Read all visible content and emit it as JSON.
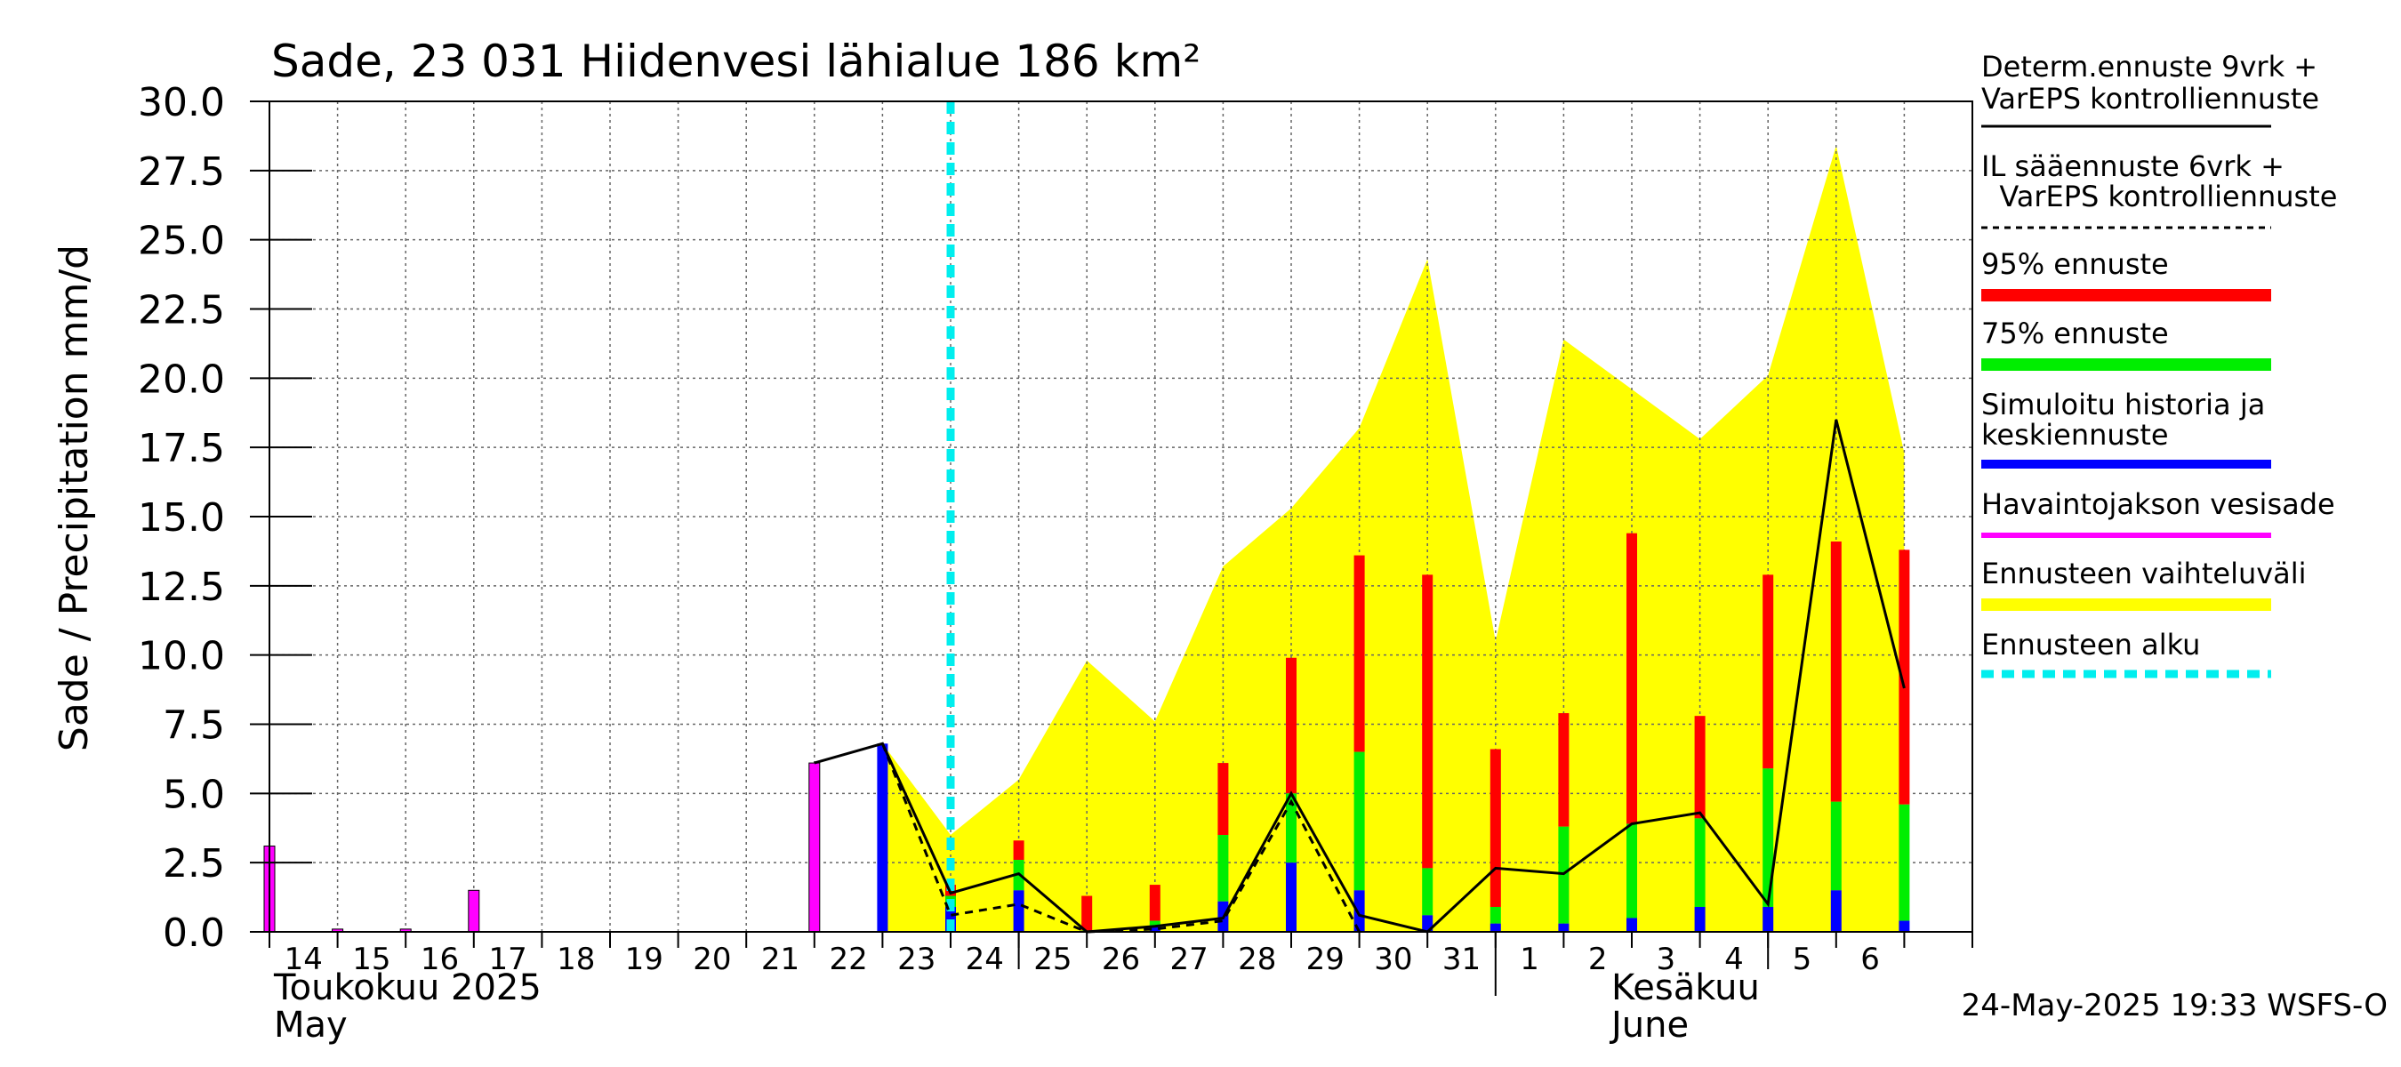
{
  "colors": {
    "p95": "#ff0000",
    "p75": "#00ee00",
    "median": "#0000ff",
    "observed": "#ff00ff",
    "range": "#ffff00",
    "forecast_start": "#00eeee",
    "grid": "#666666"
  },
  "chart_data": {
    "type": "bar",
    "title": "Sade, 23 031 Hiidenvesi lähialue 186 km²",
    "ylabel": "Sade / Precipitation   mm/d",
    "ylim": [
      0,
      30
    ],
    "yticks": [
      "0.0",
      "2.5",
      "5.0",
      "7.5",
      "10.0",
      "12.5",
      "15.0",
      "17.5",
      "20.0",
      "22.5",
      "25.0",
      "27.5",
      "30.0"
    ],
    "x_range": [
      "2025-05-14",
      "2025-06-07"
    ],
    "x_ticks": [
      {
        "day": 14,
        "label": "14"
      },
      {
        "day": 15,
        "label": "15"
      },
      {
        "day": 16,
        "label": "16"
      },
      {
        "day": 17,
        "label": "17"
      },
      {
        "day": 18,
        "label": "18"
      },
      {
        "day": 19,
        "label": "19"
      },
      {
        "day": 20,
        "label": "20"
      },
      {
        "day": 21,
        "label": "21"
      },
      {
        "day": 22,
        "label": "22"
      },
      {
        "day": 23,
        "label": "23"
      },
      {
        "day": 24,
        "label": "24"
      },
      {
        "day": 25,
        "label": "25"
      },
      {
        "day": 26,
        "label": "26"
      },
      {
        "day": 27,
        "label": "27"
      },
      {
        "day": 28,
        "label": "28"
      },
      {
        "day": 29,
        "label": "29"
      },
      {
        "day": 30,
        "label": "30"
      },
      {
        "day": 31,
        "label": "31"
      },
      {
        "day": 32,
        "label": "1"
      },
      {
        "day": 33,
        "label": "2"
      },
      {
        "day": 34,
        "label": "3"
      },
      {
        "day": 35,
        "label": "4"
      },
      {
        "day": 36,
        "label": "5"
      },
      {
        "day": 37,
        "label": "6"
      }
    ],
    "month_labels": {
      "may_fi": "Toukokuu  2025",
      "may_en": "May",
      "june_fi": "Kesäkuu",
      "june_en": "June"
    },
    "forecast_start_date": "2025-05-24",
    "observed_precip": [
      {
        "day": 14,
        "value": 3.1
      },
      {
        "day": 15,
        "value": 0.1
      },
      {
        "day": 16,
        "value": 0.1
      },
      {
        "day": 17,
        "value": 1.5
      },
      {
        "day": 22,
        "value": 6.1
      }
    ],
    "simulated_history": [
      {
        "day": 22,
        "value": 6.1
      },
      {
        "day": 23,
        "value": 6.8
      }
    ],
    "forecast_bars": [
      {
        "day": 24,
        "median": 0.9,
        "p75": 1.3,
        "p95": 1.7
      },
      {
        "day": 25,
        "median": 1.5,
        "p75": 2.6,
        "p95": 3.3
      },
      {
        "day": 26,
        "median": 0.0,
        "p75": 0.05,
        "p95": 1.3
      },
      {
        "day": 27,
        "median": 0.2,
        "p75": 0.4,
        "p95": 1.7
      },
      {
        "day": 28,
        "median": 1.1,
        "p75": 3.5,
        "p95": 6.1
      },
      {
        "day": 29,
        "median": 2.5,
        "p75": 5.0,
        "p95": 9.9
      },
      {
        "day": 30,
        "median": 1.5,
        "p75": 6.5,
        "p95": 13.6
      },
      {
        "day": 31,
        "median": 0.6,
        "p75": 2.3,
        "p95": 12.9
      },
      {
        "day": 32,
        "median": 0.3,
        "p75": 0.9,
        "p95": 6.6
      },
      {
        "day": 33,
        "median": 0.3,
        "p75": 3.8,
        "p95": 7.9
      },
      {
        "day": 34,
        "median": 0.5,
        "p75": 3.9,
        "p95": 14.4
      },
      {
        "day": 35,
        "median": 0.9,
        "p75": 4.1,
        "p95": 7.8
      },
      {
        "day": 36,
        "median": 0.9,
        "p75": 5.9,
        "p95": 12.9
      },
      {
        "day": 37,
        "median": 1.5,
        "p75": 4.7,
        "p95": 14.1
      },
      {
        "day": 38,
        "median": 0.4,
        "p75": 4.6,
        "p95": 13.8
      }
    ],
    "ensemble_range_upper": [
      {
        "day": 23,
        "value": 6.8
      },
      {
        "day": 24,
        "value": 3.5
      },
      {
        "day": 25,
        "value": 5.5
      },
      {
        "day": 26,
        "value": 9.8
      },
      {
        "day": 27,
        "value": 7.6
      },
      {
        "day": 28,
        "value": 13.2
      },
      {
        "day": 29,
        "value": 15.3
      },
      {
        "day": 30,
        "value": 18.2
      },
      {
        "day": 31,
        "value": 24.3
      },
      {
        "day": 32,
        "value": 10.5
      },
      {
        "day": 33,
        "value": 21.4
      },
      {
        "day": 34,
        "value": 19.6
      },
      {
        "day": 35,
        "value": 17.8
      },
      {
        "day": 36,
        "value": 20.1
      },
      {
        "day": 37,
        "value": 28.4
      },
      {
        "day": 38,
        "value": 17.3
      }
    ],
    "determ_forecast": [
      {
        "day": 22,
        "value": 6.1
      },
      {
        "day": 23,
        "value": 6.8
      },
      {
        "day": 24,
        "value": 1.4
      },
      {
        "day": 25,
        "value": 2.1
      },
      {
        "day": 26,
        "value": 0.0
      },
      {
        "day": 27,
        "value": 0.2
      },
      {
        "day": 28,
        "value": 0.5
      },
      {
        "day": 29,
        "value": 5.0
      },
      {
        "day": 30,
        "value": 0.6
      },
      {
        "day": 31,
        "value": 0.0
      },
      {
        "day": 32,
        "value": 2.3
      },
      {
        "day": 33,
        "value": 2.1
      },
      {
        "day": 34,
        "value": 3.9
      },
      {
        "day": 35,
        "value": 4.3
      },
      {
        "day": 36,
        "value": 1.0
      },
      {
        "day": 37,
        "value": 18.5
      },
      {
        "day": 38,
        "value": 8.8
      }
    ],
    "il_forecast": [
      {
        "day": 23,
        "value": 6.8
      },
      {
        "day": 24,
        "value": 0.6
      },
      {
        "day": 25,
        "value": 1.0
      },
      {
        "day": 26,
        "value": 0.0
      },
      {
        "day": 27,
        "value": 0.1
      },
      {
        "day": 28,
        "value": 0.4
      },
      {
        "day": 29,
        "value": 4.7
      },
      {
        "day": 30,
        "value": 0.0
      }
    ],
    "legend": [
      {
        "label1": "Determ.ennuste 9vrk  +",
        "label2": "VarEPS kontrolliennuste",
        "style": "solid-line"
      },
      {
        "label1": "IL sääennuste 6vrk  +",
        "label2": "  VarEPS kontrolliennuste",
        "style": "dashed-line"
      },
      {
        "label1": "95% ennuste",
        "style": "red-bar"
      },
      {
        "label1": "75% ennuste",
        "style": "green-bar"
      },
      {
        "label1": "Simuloitu historia ja",
        "label2": "keskiennuste",
        "style": "blue-bar"
      },
      {
        "label1": "Havaintojakson vesisade",
        "style": "magenta-bar"
      },
      {
        "label1": "Ennusteen vaihteluväli",
        "style": "yellow-bar"
      },
      {
        "label1": "Ennusteen alku",
        "style": "cyan-dash"
      }
    ],
    "timestamp": "24-May-2025 19:33 WSFS-O"
  }
}
